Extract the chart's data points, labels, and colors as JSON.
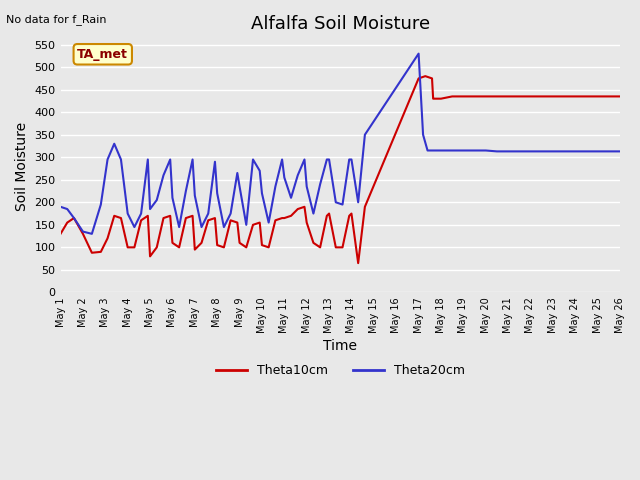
{
  "title": "Alfalfa Soil Moisture",
  "xlabel": "Time",
  "ylabel": "Soil Moisture",
  "top_left_text": "No data for f_Rain",
  "annotation_box": "TA_met",
  "ylim": [
    0,
    560
  ],
  "yticks": [
    0,
    50,
    100,
    150,
    200,
    250,
    300,
    350,
    400,
    450,
    500,
    550
  ],
  "legend_labels": [
    "Theta10cm",
    "Theta20cm"
  ],
  "line_colors": [
    "#cc0000",
    "#3333cc"
  ],
  "theta10_x": [
    1,
    1.3,
    1.6,
    2,
    2.4,
    2.8,
    3.1,
    3.4,
    3.7,
    4,
    4.3,
    4.6,
    4.9,
    5,
    5.3,
    5.6,
    5.9,
    6,
    6.3,
    6.6,
    6.9,
    7,
    7.3,
    7.6,
    7.9,
    8,
    8.3,
    8.6,
    8.9,
    9,
    9.3,
    9.6,
    9.9,
    10,
    10.3,
    10.6,
    10.9,
    11,
    11.3,
    11.6,
    11.9,
    12,
    12.3,
    12.6,
    12.9,
    13,
    13.3,
    13.6,
    13.9,
    14,
    14.3,
    14.6,
    17,
    17.3,
    17.6,
    17.65,
    17.7,
    18,
    18.5,
    19,
    19.5,
    20,
    20.5,
    21,
    21.5,
    22,
    22.5,
    23,
    23.5,
    24,
    24.5,
    25,
    25.5,
    26
  ],
  "theta10_y": [
    130,
    155,
    165,
    130,
    88,
    90,
    120,
    170,
    165,
    100,
    100,
    160,
    170,
    80,
    100,
    165,
    170,
    110,
    100,
    165,
    170,
    95,
    110,
    160,
    165,
    105,
    100,
    160,
    155,
    110,
    100,
    150,
    155,
    105,
    100,
    160,
    165,
    165,
    170,
    185,
    190,
    155,
    110,
    100,
    170,
    175,
    100,
    100,
    170,
    175,
    65,
    190,
    475,
    480,
    475,
    430,
    430,
    430,
    435,
    435,
    435,
    435,
    435,
    435,
    435,
    435,
    435,
    435,
    435,
    435,
    435,
    435,
    435,
    435
  ],
  "theta20_x": [
    1,
    1.3,
    1.6,
    2,
    2.4,
    2.8,
    3.1,
    3.4,
    3.7,
    4,
    4.3,
    4.6,
    4.9,
    5,
    5.3,
    5.6,
    5.9,
    6,
    6.3,
    6.6,
    6.9,
    7,
    7.3,
    7.6,
    7.9,
    8,
    8.3,
    8.6,
    8.9,
    9,
    9.3,
    9.6,
    9.9,
    10,
    10.3,
    10.6,
    10.9,
    11,
    11.3,
    11.6,
    11.9,
    12,
    12.3,
    12.6,
    12.9,
    13,
    13.3,
    13.6,
    13.9,
    14,
    14.3,
    14.6,
    17,
    17.2,
    17.4,
    17.5,
    17.6,
    17.65,
    17.7,
    18,
    18.5,
    19,
    19.5,
    20,
    20.5,
    21,
    21.5,
    22,
    22.5,
    23,
    23.5,
    24,
    24.5,
    25,
    25.5,
    26
  ],
  "theta20_y": [
    190,
    185,
    165,
    135,
    130,
    195,
    295,
    330,
    295,
    175,
    145,
    175,
    295,
    185,
    205,
    260,
    295,
    210,
    145,
    225,
    295,
    215,
    145,
    175,
    290,
    220,
    145,
    175,
    265,
    235,
    150,
    295,
    270,
    220,
    155,
    235,
    295,
    255,
    210,
    260,
    295,
    235,
    175,
    240,
    295,
    295,
    200,
    195,
    295,
    295,
    200,
    350,
    530,
    350,
    315,
    315,
    315,
    315,
    315,
    315,
    315,
    315,
    315,
    315,
    313,
    313,
    313,
    313,
    313,
    313,
    313,
    313,
    313,
    313,
    313,
    313
  ]
}
